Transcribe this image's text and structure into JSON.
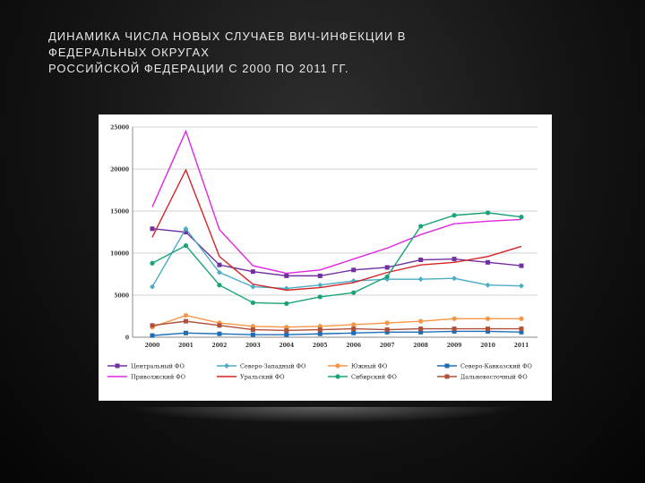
{
  "slide": {
    "title_lines": [
      "ДИНАМИКА ЧИСЛА НОВЫХ СЛУЧАЕВ ВИЧ-ИНФЕКЦИИ В",
      "ФЕДЕРАЛЬНЫХ ОКРУГАХ",
      "РОССИЙСКОЙ ФЕДЕРАЦИИ  С 2000 ПО 2011 ГГ."
    ]
  },
  "chart_data": {
    "type": "line",
    "title": "",
    "xlabel": "",
    "ylabel": "",
    "x": [
      "2000",
      "2001",
      "2002",
      "2003",
      "2004",
      "2005",
      "2006",
      "2007",
      "2008",
      "2009",
      "2010",
      "2011"
    ],
    "ylim": [
      0,
      25000
    ],
    "yticks": [
      "0",
      "5000",
      "10000",
      "15000",
      "20000",
      "25000"
    ],
    "grid": "horizontal",
    "legend_position": "bottom",
    "series": [
      {
        "name": "Центральный ФО",
        "color": "#7030a0",
        "marker": "square",
        "values": [
          12900,
          12500,
          8600,
          7800,
          7300,
          7300,
          8000,
          8300,
          9200,
          9300,
          8900,
          8500
        ]
      },
      {
        "name": "Северо-Западный ФО",
        "color": "#4bacc6",
        "marker": "diamond",
        "values": [
          6000,
          12900,
          7700,
          6000,
          5800,
          6200,
          6700,
          6900,
          6900,
          7000,
          6200,
          6100
        ]
      },
      {
        "name": "Южный ФО",
        "color": "#f79646",
        "marker": "circle",
        "values": [
          1200,
          2600,
          1700,
          1300,
          1200,
          1300,
          1500,
          1700,
          1900,
          2200,
          2200,
          2200
        ]
      },
      {
        "name": "Северо-Кавказский ФО",
        "color": "#1f6eb5",
        "marker": "square",
        "values": [
          200,
          500,
          400,
          300,
          300,
          400,
          500,
          600,
          600,
          700,
          700,
          600
        ]
      },
      {
        "name": "Приволжский ФО",
        "color": "#e026e0",
        "marker": "none",
        "values": [
          15500,
          24500,
          12800,
          8500,
          7600,
          8000,
          9300,
          10600,
          12200,
          13500,
          13800,
          14000
        ]
      },
      {
        "name": "Уральский ФО",
        "color": "#d42424",
        "marker": "none",
        "values": [
          11900,
          19900,
          9600,
          6300,
          5600,
          5900,
          6500,
          7700,
          8600,
          8900,
          9600,
          10800
        ]
      },
      {
        "name": "Сибирский ФО",
        "color": "#1aa37a",
        "marker": "circle",
        "values": [
          8800,
          10900,
          6200,
          4100,
          4000,
          4800,
          5300,
          7200,
          13200,
          14500,
          14800,
          14300
        ]
      },
      {
        "name": "Дальневосточный ФО",
        "color": "#b0503a",
        "marker": "square",
        "values": [
          1400,
          1900,
          1400,
          900,
          800,
          900,
          1000,
          900,
          1000,
          1000,
          1000,
          1000
        ]
      }
    ]
  }
}
